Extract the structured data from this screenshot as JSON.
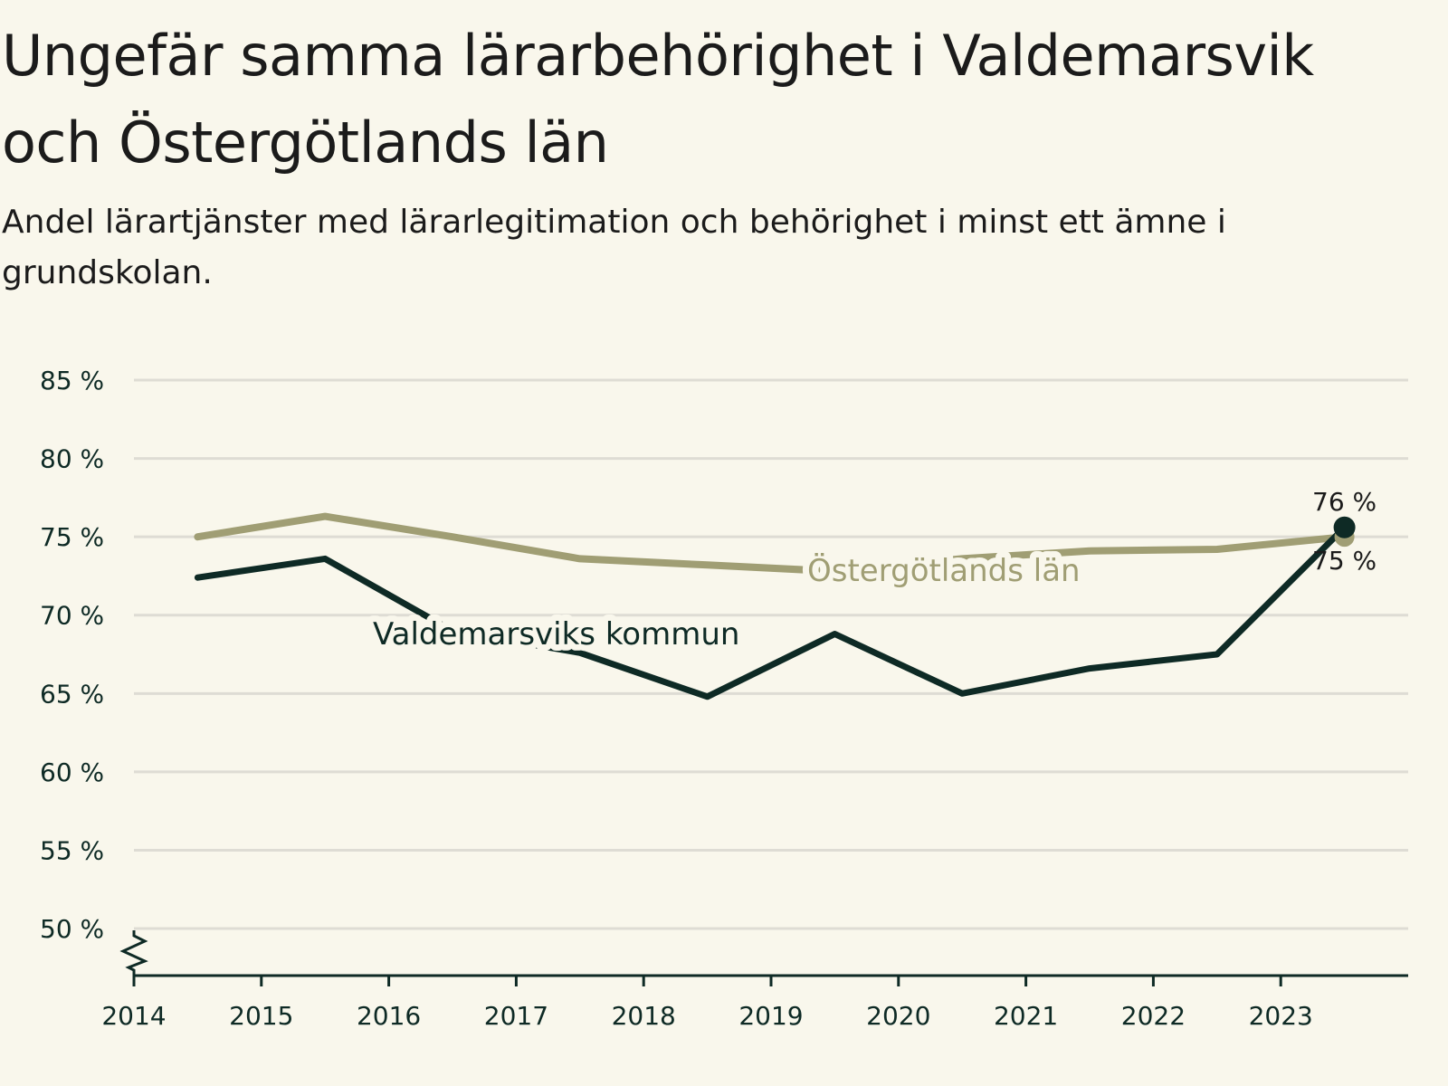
{
  "header": {
    "title": "Ungefär samma lärarbehörighet i Valdemarsvik och Östergötlands län",
    "subtitle": "Andel lärartjänster med lärarlegitimation och behörighet i minst ett ämne i grundskolan."
  },
  "colors": {
    "background": "#f9f7ec",
    "grid": "#dedcd4",
    "axis": "#0e2a25",
    "kommun": "#0e2a25",
    "lan": "#a09e74"
  },
  "chart_data": {
    "type": "line",
    "title": "Ungefär samma lärarbehörighet i Valdemarsvik och Östergötlands län",
    "subtitle": "Andel lärartjänster med lärarlegitimation och behörighet i minst ett ämne i grundskolan.",
    "xlabel": "",
    "ylabel": "",
    "x_ticks": [
      "2014",
      "2015",
      "2016",
      "2017",
      "2018",
      "2019",
      "2020",
      "2021",
      "2022",
      "2023"
    ],
    "y_ticks": [
      "50 %",
      "55 %",
      "60 %",
      "65 %",
      "70 %",
      "75 %",
      "80 %",
      "85 %"
    ],
    "ylim": [
      47,
      85
    ],
    "xlim": [
      2014,
      2024
    ],
    "grid": true,
    "axis_break": true,
    "series": [
      {
        "name": "Östergötlands län",
        "label": "Östergötlands län",
        "color": "#a09e74",
        "x": [
          2014.5,
          2015.5,
          2016.5,
          2017.5,
          2018.5,
          2019.5,
          2020.5,
          2021.5,
          2022.5,
          2023.5
        ],
        "values": [
          75.0,
          76.3,
          75.0,
          73.6,
          73.2,
          72.8,
          73.6,
          74.1,
          74.2,
          75.0
        ],
        "end_label": "75 %"
      },
      {
        "name": "Valdemarsviks kommun",
        "label": "Valdemarsviks kommun",
        "color": "#0e2a25",
        "x": [
          2014.5,
          2015.5,
          2016.5,
          2017.5,
          2018.5,
          2019.5,
          2020.5,
          2021.5,
          2022.5,
          2023.5
        ],
        "values": [
          72.4,
          73.6,
          69.0,
          67.6,
          64.8,
          68.8,
          65.0,
          66.6,
          67.5,
          75.6
        ],
        "end_label": "76 %"
      }
    ]
  }
}
